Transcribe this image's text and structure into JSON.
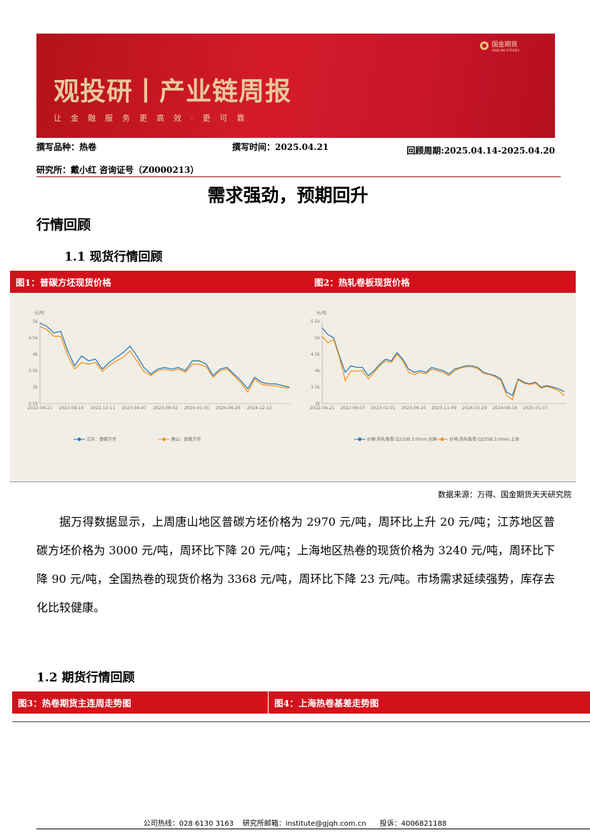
{
  "banner": {
    "title": "观投研丨产业链周报",
    "slogan": "让金融服务更高效·更可靠",
    "logo_text": "国金期货",
    "logo_sub": "SINOLINK FUTURES"
  },
  "meta": {
    "variety": "撰写品种：热卷",
    "write_time": "撰写时间：2025.04.21",
    "review_period": "回顾周期:2025.04.14-2025.04.20",
    "institute": "研究所：戴小红 咨询证号（Z0000213）"
  },
  "doc_title": "需求强劲，预期回升",
  "section1": "行情回顾",
  "sub1": "1.1 现货行情回顾",
  "fig1_label": "图1：普碳方坯现货价格",
  "fig2_label": "图2：热轧卷板现货价格",
  "source": "数据来源：万得、国金期货天天研究院",
  "paragraph": "据万得数据显示，上周唐山地区普碳方坯价格为 2970 元/吨，周环比上升 20 元/吨；江苏地区普碳方坯价格为 3000 元/吨，周环比下降 20 元/吨；上海地区热卷的现货价格为 3240 元/吨，周环比下降 90 元/吨，全国热卷的现货价格为 3368 元/吨，周环比下降 23 元/吨。市场需求延续强势，库存去化比较健康。",
  "sub2": "1.2 期货行情回顾",
  "fig3_label": "图3：热卷期货主连周走势图",
  "fig4_label": "图4：上海热卷基差走势图",
  "footer": "公司热线：028 6130 3163    研究所邮箱：institute@gjqh.com.cn      投诉：4006821188",
  "chart_data": [
    {
      "type": "line",
      "ylabel": "元/吨",
      "ylim": [
        2500,
        5000
      ],
      "yticks": [
        "2.5k",
        "3k",
        "3.5k",
        "4k",
        "4.5k",
        "5k"
      ],
      "xticks": [
        "2022-04-21",
        "2022-08-16",
        "2022-12-11",
        "2023-04-07",
        "2023-08-02",
        "2024-01-05",
        "2024-06-26",
        "2024-12-12"
      ],
      "colors": [
        "#2b7bb9",
        "#f7931e"
      ],
      "series": [
        {
          "name": "江苏：普碳方坯",
          "values": [
            4950,
            4850,
            4650,
            4700,
            4100,
            3650,
            3950,
            3800,
            3850,
            3550,
            3750,
            3900,
            4050,
            4250,
            3950,
            3600,
            3400,
            3550,
            3600,
            3550,
            3600,
            3500,
            3800,
            3800,
            3700,
            3350,
            3550,
            3600,
            3400,
            3200,
            2950,
            3300,
            3150,
            3100,
            3100,
            3050,
            3000
          ]
        },
        {
          "name": "唐山：普碳方坯",
          "values": [
            4850,
            4750,
            4550,
            4550,
            3950,
            3550,
            3750,
            3700,
            3750,
            3480,
            3650,
            3800,
            3900,
            4100,
            3800,
            3480,
            3350,
            3500,
            3550,
            3500,
            3550,
            3450,
            3700,
            3700,
            3620,
            3300,
            3500,
            3550,
            3350,
            3130,
            2850,
            3250,
            3080,
            3050,
            3040,
            2990,
            2970
          ]
        }
      ]
    },
    {
      "type": "line",
      "ylabel": "元/吨",
      "ylim": [
        3000,
        5500
      ],
      "yticks": [
        "3k",
        "3.5k",
        "4k",
        "4.5k",
        "5k",
        "5.5k"
      ],
      "xticks": [
        "2022-04-21",
        "2022-09-07",
        "2023-02-01",
        "2023-06-20",
        "2023-11-09",
        "2024-03-29",
        "2024-08-16",
        "2025-01-07"
      ],
      "colors": [
        "#2b7bb9",
        "#f7931e"
      ],
      "series": [
        {
          "name": "价格:热轧板卷:Q235B:3.0mm:全国",
          "values": [
            5300,
            5100,
            5000,
            4450,
            3950,
            4150,
            4100,
            4100,
            3850,
            4000,
            4200,
            4350,
            4300,
            4550,
            4350,
            4050,
            3950,
            4000,
            3950,
            4100,
            4050,
            4000,
            3900,
            4050,
            4100,
            4150,
            4150,
            4100,
            3950,
            3900,
            3850,
            3750,
            3350,
            3250,
            3750,
            3650,
            3600,
            3650,
            3500,
            3550,
            3500,
            3450,
            3368
          ]
        },
        {
          "name": "价格:热轧板卷:Q235B:3.0mm:上海",
          "values": [
            5050,
            4850,
            4950,
            4400,
            3700,
            4000,
            3980,
            4000,
            3750,
            3950,
            4150,
            4300,
            4250,
            4500,
            4300,
            3950,
            3880,
            3950,
            3900,
            4050,
            4000,
            3950,
            3850,
            4000,
            4080,
            4120,
            4120,
            4060,
            3920,
            3880,
            3820,
            3700,
            3250,
            3120,
            3720,
            3620,
            3580,
            3620,
            3470,
            3520,
            3470,
            3400,
            3240
          ]
        }
      ]
    }
  ]
}
